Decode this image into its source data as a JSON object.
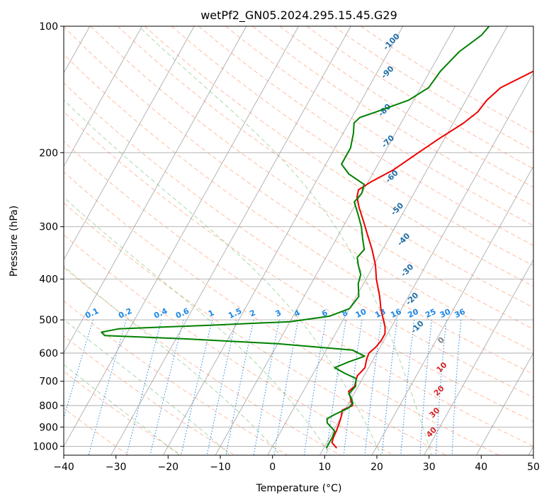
{
  "chart_data": {
    "type": "line",
    "title": "wetPf2_GN05.2024.295.15.45.G29",
    "xlabel": "Temperature (°C)",
    "ylabel": "Pressure (hPa)",
    "xlim": [
      -40,
      50
    ],
    "ylim": [
      1050,
      100
    ],
    "yscale": "log",
    "grid": true,
    "x_ticks": [
      -40,
      -30,
      -20,
      -10,
      0,
      10,
      20,
      30,
      40,
      50
    ],
    "x_tick_labels": [
      "−40",
      "−30",
      "−20",
      "−10",
      "0",
      "10",
      "20",
      "30",
      "40",
      "50"
    ],
    "y_ticks": [
      1000,
      900,
      800,
      700,
      600,
      500,
      400,
      300,
      200,
      100
    ],
    "y_tick_labels": [
      "1000",
      "900",
      "800",
      "700",
      "600",
      "500",
      "400",
      "300",
      "200",
      "100"
    ],
    "skew_reference_pressure_hpa": 1000,
    "skew_degrees_per_decade": 45,
    "series": [
      {
        "role": "temperature",
        "color": "#ee0000",
        "points": [
          {
            "p": 1010,
            "t": 12.5
          },
          {
            "p": 980,
            "t": 11.0
          },
          {
            "p": 950,
            "t": 10.7
          },
          {
            "p": 920,
            "t": 10.6
          },
          {
            "p": 880,
            "t": 10.3
          },
          {
            "p": 850,
            "t": 10.0
          },
          {
            "p": 820,
            "t": 9.5
          },
          {
            "p": 800,
            "t": 11.0
          },
          {
            "p": 780,
            "t": 10.2
          },
          {
            "p": 760,
            "t": 9.5
          },
          {
            "p": 740,
            "t": 8.7
          },
          {
            "p": 720,
            "t": 9.3
          },
          {
            "p": 700,
            "t": 9.0
          },
          {
            "p": 680,
            "t": 8.7
          },
          {
            "p": 650,
            "t": 9.3
          },
          {
            "p": 620,
            "t": 8.7
          },
          {
            "p": 600,
            "t": 8.5
          },
          {
            "p": 580,
            "t": 9.2
          },
          {
            "p": 560,
            "t": 9.5
          },
          {
            "p": 540,
            "t": 9.5
          },
          {
            "p": 520,
            "t": 8.8
          },
          {
            "p": 500,
            "t": 7.7
          },
          {
            "p": 470,
            "t": 6.0
          },
          {
            "p": 440,
            "t": 4.5
          },
          {
            "p": 400,
            "t": 2.0
          },
          {
            "p": 370,
            "t": 0.3
          },
          {
            "p": 340,
            "t": -2.0
          },
          {
            "p": 310,
            "t": -4.8
          },
          {
            "p": 290,
            "t": -6.8
          },
          {
            "p": 270,
            "t": -9.0
          },
          {
            "p": 255,
            "t": -10.5
          },
          {
            "p": 245,
            "t": -11.0
          },
          {
            "p": 235,
            "t": -9.5
          },
          {
            "p": 220,
            "t": -6.5
          },
          {
            "p": 200,
            "t": -3.5
          },
          {
            "p": 185,
            "t": -1.0
          },
          {
            "p": 170,
            "t": 2.0
          },
          {
            "p": 160,
            "t": 3.5
          },
          {
            "p": 150,
            "t": 4.0
          },
          {
            "p": 140,
            "t": 5.3
          },
          {
            "p": 125,
            "t": 11.0
          },
          {
            "p": 115,
            "t": 14.5
          },
          {
            "p": 105,
            "t": 17.0
          },
          {
            "p": 100,
            "t": 17.5
          }
        ]
      },
      {
        "role": "dewpoint",
        "color": "#008000",
        "points": [
          {
            "p": 1010,
            "t": 10.5
          },
          {
            "p": 950,
            "t": 10.5
          },
          {
            "p": 920,
            "t": 10.3
          },
          {
            "p": 880,
            "t": 8.0
          },
          {
            "p": 860,
            "t": 7.5
          },
          {
            "p": 840,
            "t": 8.5
          },
          {
            "p": 810,
            "t": 10.5
          },
          {
            "p": 790,
            "t": 10.8
          },
          {
            "p": 770,
            "t": 10.0
          },
          {
            "p": 750,
            "t": 9.0
          },
          {
            "p": 720,
            "t": 9.5
          },
          {
            "p": 700,
            "t": 9.0
          },
          {
            "p": 690,
            "t": 8.8
          },
          {
            "p": 670,
            "t": 6.0
          },
          {
            "p": 650,
            "t": 3.5
          },
          {
            "p": 630,
            "t": 5.5
          },
          {
            "p": 610,
            "t": 8.0
          },
          {
            "p": 590,
            "t": 5.0
          },
          {
            "p": 570,
            "t": -10.0
          },
          {
            "p": 555,
            "t": -28.0
          },
          {
            "p": 545,
            "t": -44.0
          },
          {
            "p": 535,
            "t": -45.0
          },
          {
            "p": 525,
            "t": -42.0
          },
          {
            "p": 515,
            "t": -25.0
          },
          {
            "p": 505,
            "t": -10.0
          },
          {
            "p": 490,
            "t": -3.0
          },
          {
            "p": 470,
            "t": 0.0
          },
          {
            "p": 440,
            "t": 0.5
          },
          {
            "p": 410,
            "t": -1.0
          },
          {
            "p": 390,
            "t": -1.5
          },
          {
            "p": 370,
            "t": -3.0
          },
          {
            "p": 355,
            "t": -4.0
          },
          {
            "p": 340,
            "t": -3.5
          },
          {
            "p": 320,
            "t": -5.0
          },
          {
            "p": 300,
            "t": -6.5
          },
          {
            "p": 280,
            "t": -8.5
          },
          {
            "p": 262,
            "t": -10.5
          },
          {
            "p": 250,
            "t": -10.0
          },
          {
            "p": 238,
            "t": -10.5
          },
          {
            "p": 225,
            "t": -14.5
          },
          {
            "p": 213,
            "t": -17.0
          },
          {
            "p": 195,
            "t": -17.0
          },
          {
            "p": 180,
            "t": -18.0
          },
          {
            "p": 170,
            "t": -19.0
          },
          {
            "p": 165,
            "t": -18.5
          },
          {
            "p": 160,
            "t": -16.0
          },
          {
            "p": 150,
            "t": -11.0
          },
          {
            "p": 140,
            "t": -8.5
          },
          {
            "p": 128,
            "t": -8.0
          },
          {
            "p": 115,
            "t": -6.5
          },
          {
            "p": 105,
            "t": -4.0
          },
          {
            "p": 100,
            "t": -3.5
          }
        ]
      }
    ],
    "dry_adiabats": {
      "color": "#ff9f7a",
      "theta_c": [
        -30,
        -20,
        -10,
        0,
        10,
        20,
        30,
        40,
        50,
        60,
        70,
        80,
        90,
        100,
        110,
        120,
        130,
        140,
        150,
        160,
        170,
        180,
        190,
        200
      ]
    },
    "moist_adiabats": {
      "color": "#6fbf6f",
      "theta_w_c": [
        -20,
        -10,
        0,
        10,
        20,
        30
      ]
    },
    "mixing_ratio_lines": {
      "color": "#1e88e5",
      "values": [
        0.1,
        0.2,
        0.4,
        0.6,
        1,
        1.5,
        2,
        3,
        4,
        6,
        8,
        10,
        13,
        16,
        20,
        25,
        30,
        36
      ],
      "labels": [
        "0.1",
        "0.2",
        "0.4",
        "0.6",
        "1",
        "1.5",
        "2",
        "3",
        "4",
        "6",
        "8",
        "10",
        "13",
        "16",
        "20",
        "25",
        "30",
        "36"
      ]
    },
    "upper_labels": {
      "color": "#1f6fa8",
      "items": [
        {
          "text": "-100",
          "p": 110,
          "t": -20
        },
        {
          "text": "-90",
          "p": 130,
          "t": -17.5
        },
        {
          "text": "-80",
          "p": 160,
          "t": -14
        },
        {
          "text": "-70",
          "p": 190,
          "t": -10
        },
        {
          "text": "-60",
          "p": 230,
          "t": -5.5
        },
        {
          "text": "-50",
          "p": 275,
          "t": -1
        },
        {
          "text": "-40",
          "p": 325,
          "t": 3.5
        },
        {
          "text": "-30",
          "p": 385,
          "t": 7.5
        },
        {
          "text": "-20",
          "p": 450,
          "t": 11.5
        },
        {
          "text": "-10",
          "p": 525,
          "t": 15.5
        }
      ]
    },
    "zero_label": {
      "text": "0",
      "color": "#808080",
      "p": 565,
      "t": 21.5
    },
    "lower_labels": {
      "color": "#d62728",
      "items": [
        {
          "text": "10",
          "p": 655,
          "t": 24.5
        },
        {
          "text": "20",
          "p": 745,
          "t": 26.5
        },
        {
          "text": "30",
          "p": 840,
          "t": 28
        },
        {
          "text": "40",
          "p": 935,
          "t": 29.5
        }
      ]
    }
  }
}
